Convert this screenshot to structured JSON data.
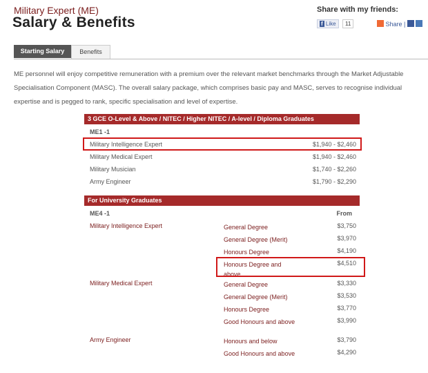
{
  "header": {
    "kicker": "Military Expert (ME)",
    "title": "Salary & Benefits",
    "share_label": "Share with my friends:",
    "like_label": "Like",
    "like_count": "11",
    "share_button": "Share"
  },
  "tabs": [
    {
      "label": "Starting Salary",
      "active": true
    },
    {
      "label": "Benefits",
      "active": false
    }
  ],
  "intro": "ME personnel will enjoy competitive remuneration with a premium over the relevant market benchmarks through the Market Adjustable Specialisation Component (MASC). The overall salary package, which comprises basic pay and MASC, serves to recognise individual expertise and is pegged to rank, specific specialisation and level of expertise.",
  "diploma": {
    "header": "3 GCE O-Level & Above / NITEC / Higher NITEC / A-level / Diploma Graduates",
    "rank": "ME1 -1",
    "rows": [
      {
        "name": "Military Intelligence Expert",
        "pay": "$1,940 - $2,460",
        "highlighted": true
      },
      {
        "name": "Military Medical Expert",
        "pay": "$1,940 - $2,460"
      },
      {
        "name": "Military Musician",
        "pay": "$1,740 - $2,260"
      },
      {
        "name": "Army Engineer",
        "pay": "$1,790 - $2,290"
      }
    ]
  },
  "university": {
    "header": "For University Graduates",
    "rank": "ME4 -1",
    "from_label": "From",
    "rows": [
      {
        "name": "Military Intelligence Expert",
        "degree": "General Degree",
        "pay": "$3,750"
      },
      {
        "name": "",
        "degree": "General Degree (Merit)",
        "pay": "$3,970"
      },
      {
        "name": "",
        "degree": "Honours Degree",
        "pay": "$4,190"
      },
      {
        "name": "",
        "degree": "Honours Degree and above",
        "pay": "$4,510",
        "highlighted": true
      },
      {
        "name": "Military Medical Expert",
        "degree": "General Degree",
        "pay": "$3,330"
      },
      {
        "name": "",
        "degree": "General Degree (Merit)",
        "pay": "$3,530"
      },
      {
        "name": "",
        "degree": "Honours Degree",
        "pay": "$3,770"
      },
      {
        "name": "",
        "degree": "Good Honours and above",
        "pay": "$3,990"
      },
      {
        "name": "Army Engineer",
        "degree": "Honours and below",
        "pay": "$3,790"
      },
      {
        "name": "",
        "degree": "Good Honours and above",
        "pay": "$4,290"
      }
    ]
  },
  "colors": {
    "accent": "#a52a2a",
    "highlight": "#d01818"
  }
}
